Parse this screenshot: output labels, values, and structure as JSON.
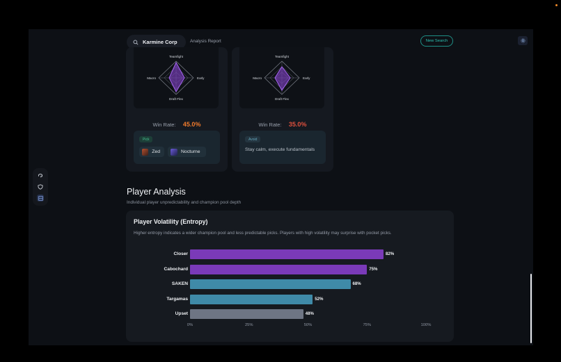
{
  "header": {
    "search_value": "Karmine Corp",
    "breadcrumb": "Analysis Report",
    "new_search_label": "New Search"
  },
  "icons": {
    "search": "search-icon",
    "settings": "gear-icon",
    "rail": [
      "brain-icon",
      "shield-icon",
      "grid-icon"
    ]
  },
  "compositions": [
    {
      "radar_axes": [
        "Teamfight",
        "Early",
        "Draft Flex",
        "Macro"
      ],
      "win_rate_label": "Win Rate:",
      "win_rate": "45.0%",
      "win_rate_color": "#f07a2c",
      "tip_tag": "Pick",
      "champions": [
        "Zed",
        "Nocturne"
      ],
      "tip_text": ""
    },
    {
      "radar_axes": [
        "Teamfight",
        "Early",
        "Draft Flex",
        "Macro"
      ],
      "win_rate_label": "Win Rate:",
      "win_rate": "35.0%",
      "win_rate_color": "#e0503d",
      "tip_tag": "Avoid",
      "champions": [],
      "tip_text": "Stay calm, execute fundamentals"
    }
  ],
  "player_analysis": {
    "title": "Player Analysis",
    "subtitle": "Individual player unpredictability and champion pool depth",
    "card_title": "Player Volatility (Entropy)",
    "card_desc": "Higher entropy indicates a wider champion pool and less predictable picks. Players with high volatility may surprise with pocket picks."
  },
  "chart_data": {
    "type": "bar",
    "orientation": "horizontal",
    "categories": [
      "Closer",
      "Cabochard",
      "SAKEN",
      "Targamas",
      "Upset"
    ],
    "values": [
      82,
      75,
      68,
      52,
      48
    ],
    "value_labels": [
      "82%",
      "75%",
      "68%",
      "52%",
      "48%"
    ],
    "colors": [
      "#7a3ab8",
      "#7a3ab8",
      "#3f8aa8",
      "#3f8aa8",
      "#6e7584"
    ],
    "xlim": [
      0,
      100
    ],
    "xticks": [
      "0%",
      "25%",
      "50%",
      "75%",
      "100%"
    ],
    "grid": false
  }
}
